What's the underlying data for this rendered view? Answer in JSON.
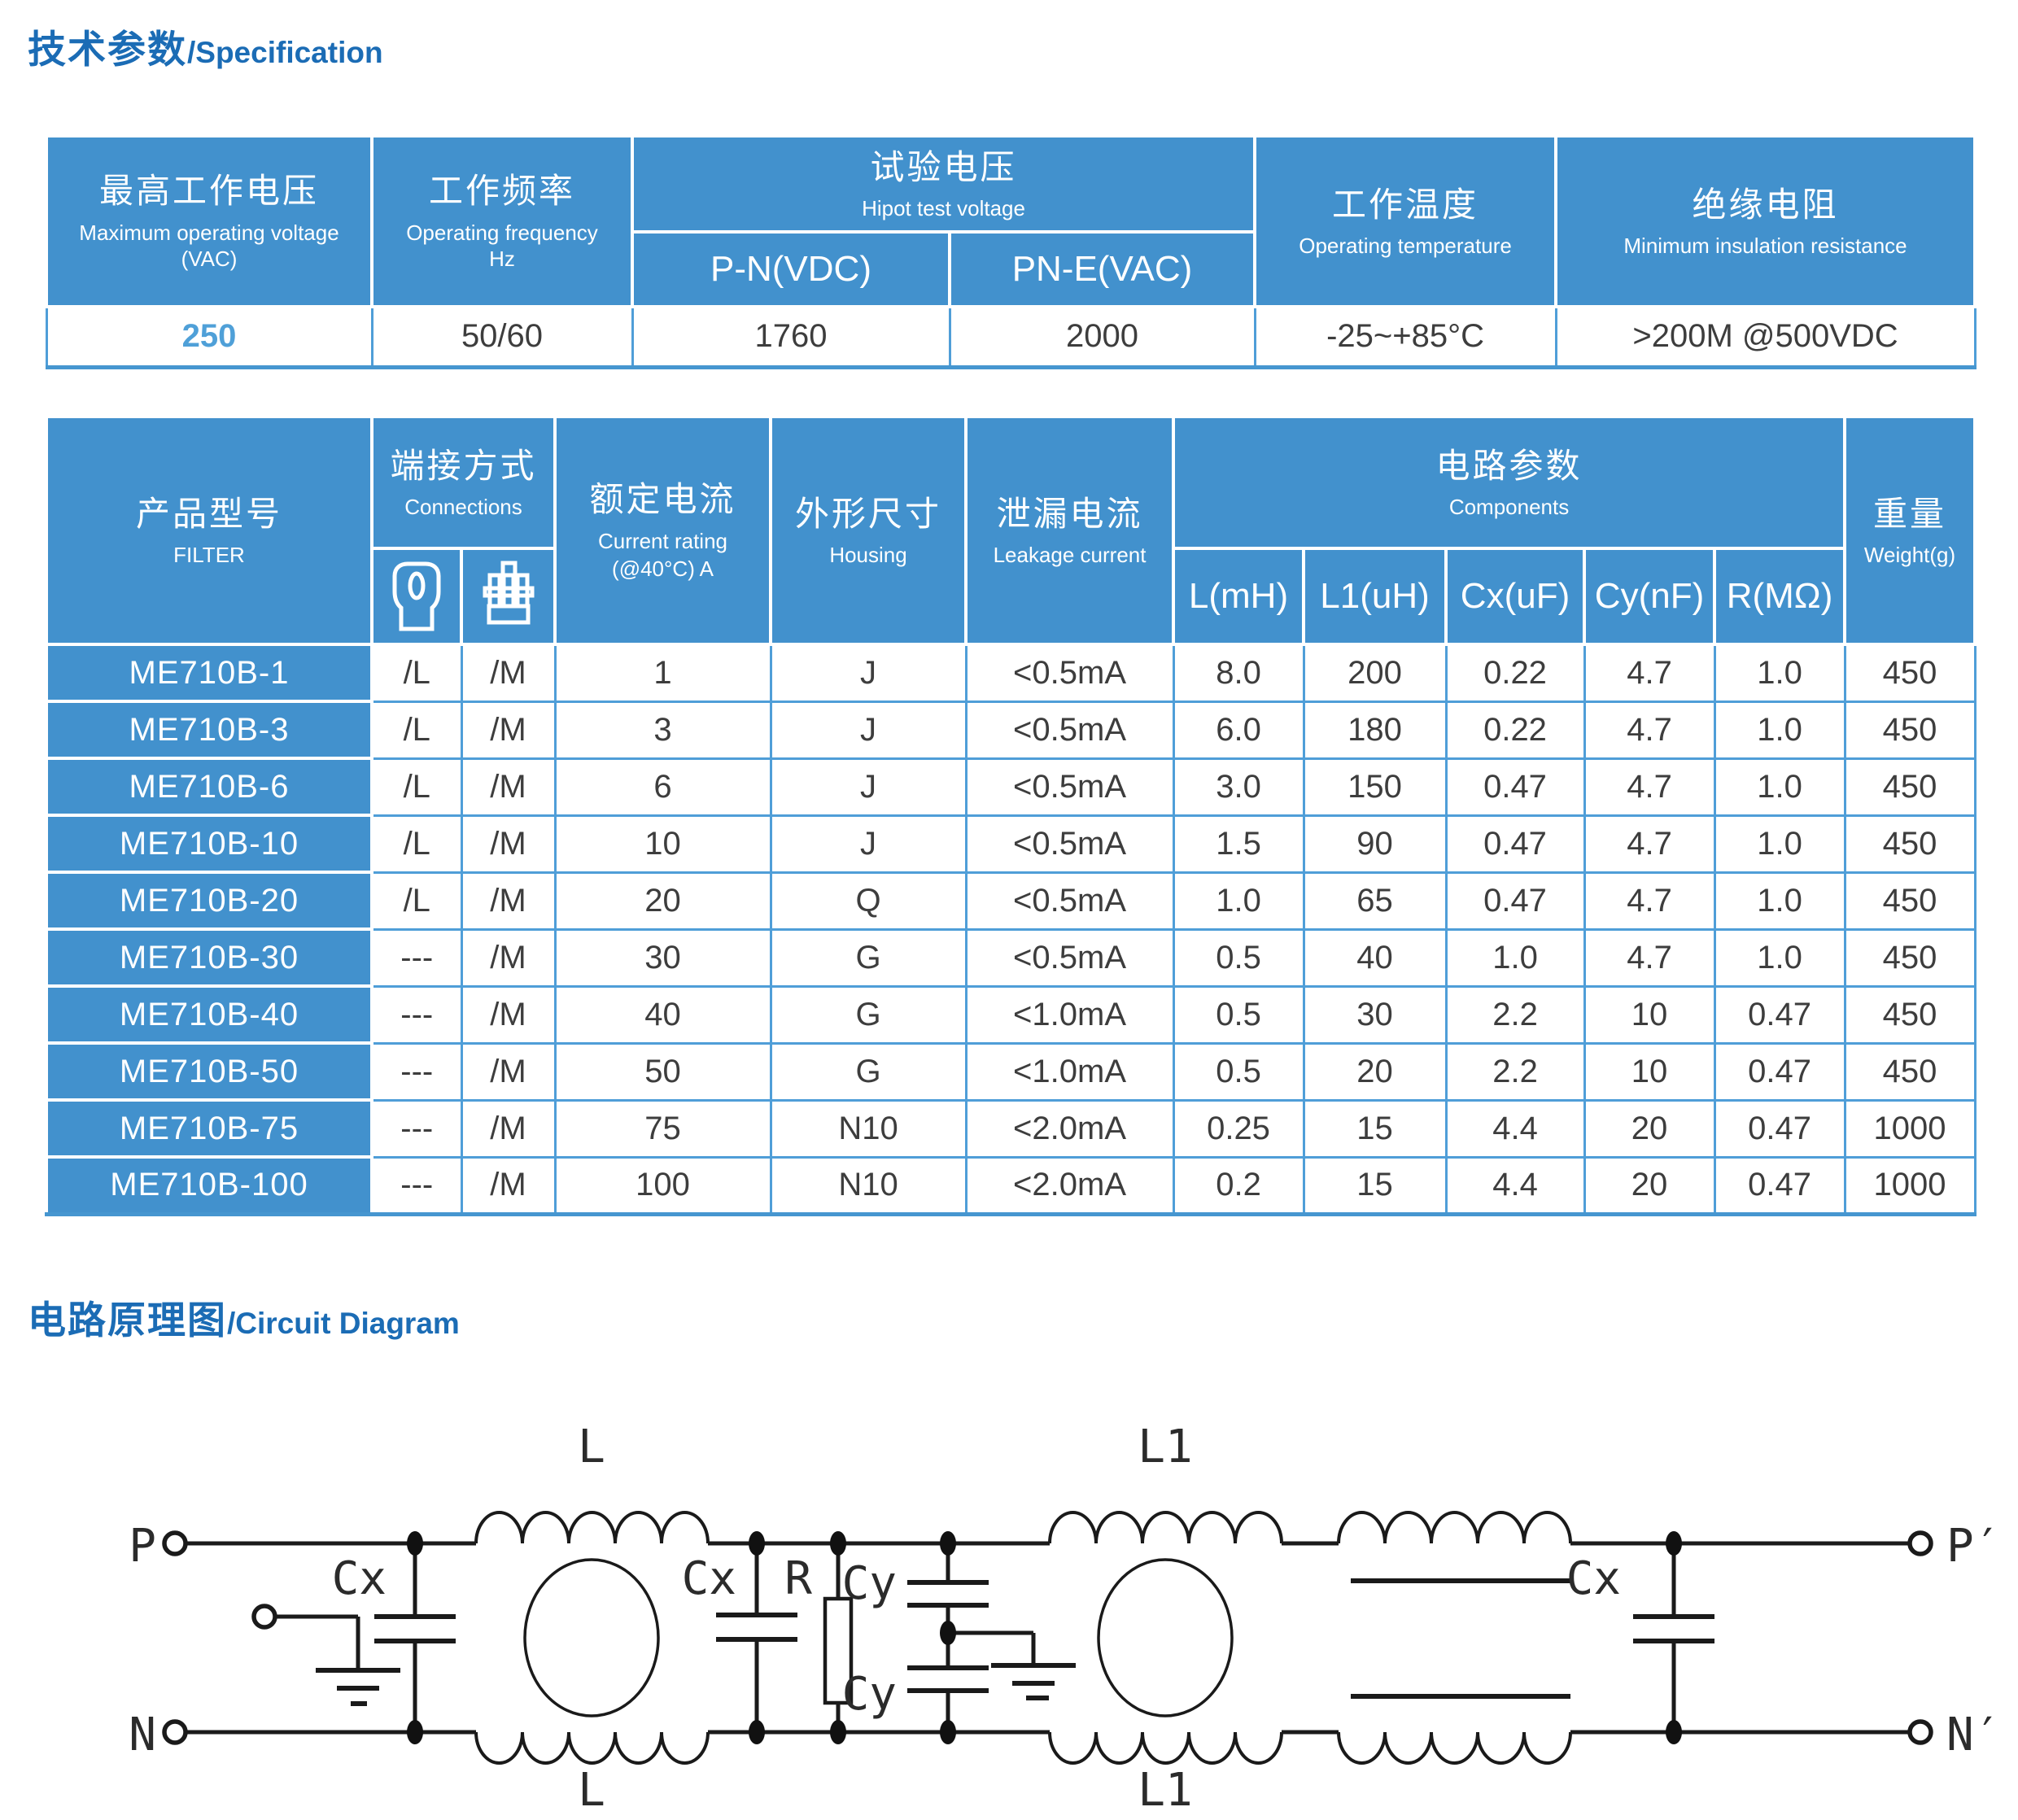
{
  "colors": {
    "header_blue": "#4291cd",
    "title_blue": "#1b6cb5",
    "border_blue": "#4f9ed8",
    "value_blue": "#4fa0d8",
    "text_dark": "#3d3d3d"
  },
  "spec_section": {
    "title_zh": "技术参数",
    "title_en": "/Specification"
  },
  "spec_table": {
    "col_max_voltage": {
      "zh": "最高工作电压",
      "en": "Maximum operating voltage (VAC)"
    },
    "col_frequency": {
      "zh": "工作频率",
      "en": "Operating frequency Hz"
    },
    "col_hipot": {
      "zh": "试验电压",
      "en": "Hipot test voltage",
      "sub_pn": "P-N(VDC)",
      "sub_pne": "PN-E(VAC)"
    },
    "col_temperature": {
      "zh": "工作温度",
      "en": "Operating temperature"
    },
    "col_insulation": {
      "zh": "绝缘电阻",
      "en": "Minimum insulation resistance"
    },
    "values": [
      "250",
      "50/60",
      "1760",
      "2000",
      "-25~+85°C",
      ">200M @500VDC"
    ]
  },
  "model_table": {
    "filter": {
      "zh": "产品型号",
      "en": "FILTER"
    },
    "connections": {
      "zh": "端接方式",
      "en": "Connections",
      "icon1": "faston-terminal",
      "icon2": "screw-terminal"
    },
    "current": {
      "zh": "额定电流",
      "en1": "Current rating",
      "en2": "(@40°C)   A"
    },
    "housing": {
      "zh": "外形尺寸",
      "en": "Housing"
    },
    "leakage": {
      "zh": "泄漏电流",
      "en": "Leakage current"
    },
    "components": {
      "zh": "电路参数",
      "en": "Components",
      "sub": [
        "L(mH)",
        "L1(uH)",
        "Cx(uF)",
        "Cy(nF)",
        "R(MΩ)"
      ]
    },
    "weight": {
      "zh": "重量",
      "en": "Weight(g)"
    },
    "rows": [
      [
        "ME710B-1",
        "/L",
        "/M",
        "1",
        "J",
        "<0.5mA",
        "8.0",
        "200",
        "0.22",
        "4.7",
        "1.0",
        "450"
      ],
      [
        "ME710B-3",
        "/L",
        "/M",
        "3",
        "J",
        "<0.5mA",
        "6.0",
        "180",
        "0.22",
        "4.7",
        "1.0",
        "450"
      ],
      [
        "ME710B-6",
        "/L",
        "/M",
        "6",
        "J",
        "<0.5mA",
        "3.0",
        "150",
        "0.47",
        "4.7",
        "1.0",
        "450"
      ],
      [
        "ME710B-10",
        "/L",
        "/M",
        "10",
        "J",
        "<0.5mA",
        "1.5",
        "90",
        "0.47",
        "4.7",
        "1.0",
        "450"
      ],
      [
        "ME710B-20",
        "/L",
        "/M",
        "20",
        "Q",
        "<0.5mA",
        "1.0",
        "65",
        "0.47",
        "4.7",
        "1.0",
        "450"
      ],
      [
        "ME710B-30",
        "---",
        "/M",
        "30",
        "G",
        "<0.5mA",
        "0.5",
        "40",
        "1.0",
        "4.7",
        "1.0",
        "450"
      ],
      [
        "ME710B-40",
        "---",
        "/M",
        "40",
        "G",
        "<1.0mA",
        "0.5",
        "30",
        "2.2",
        "10",
        "0.47",
        "450"
      ],
      [
        "ME710B-50",
        "---",
        "/M",
        "50",
        "G",
        "<1.0mA",
        "0.5",
        "20",
        "2.2",
        "10",
        "0.47",
        "450"
      ],
      [
        "ME710B-75",
        "---",
        "/M",
        "75",
        "N10",
        "<2.0mA",
        "0.25",
        "15",
        "4.4",
        "20",
        "0.47",
        "1000"
      ],
      [
        "ME710B-100",
        "---",
        "/M",
        "100",
        "N10",
        "<2.0mA",
        "0.2",
        "15",
        "4.4",
        "20",
        "0.47",
        "1000"
      ]
    ]
  },
  "circuit_section": {
    "title_zh": "电路原理图",
    "title_en": "/Circuit Diagram"
  },
  "circuit": {
    "labels": {
      "p": "P",
      "n": "N",
      "p_out": "P′",
      "n_out": "N′",
      "l": "L",
      "l1": "L1",
      "cx": "Cx",
      "cy": "Cy",
      "r": "R"
    }
  }
}
